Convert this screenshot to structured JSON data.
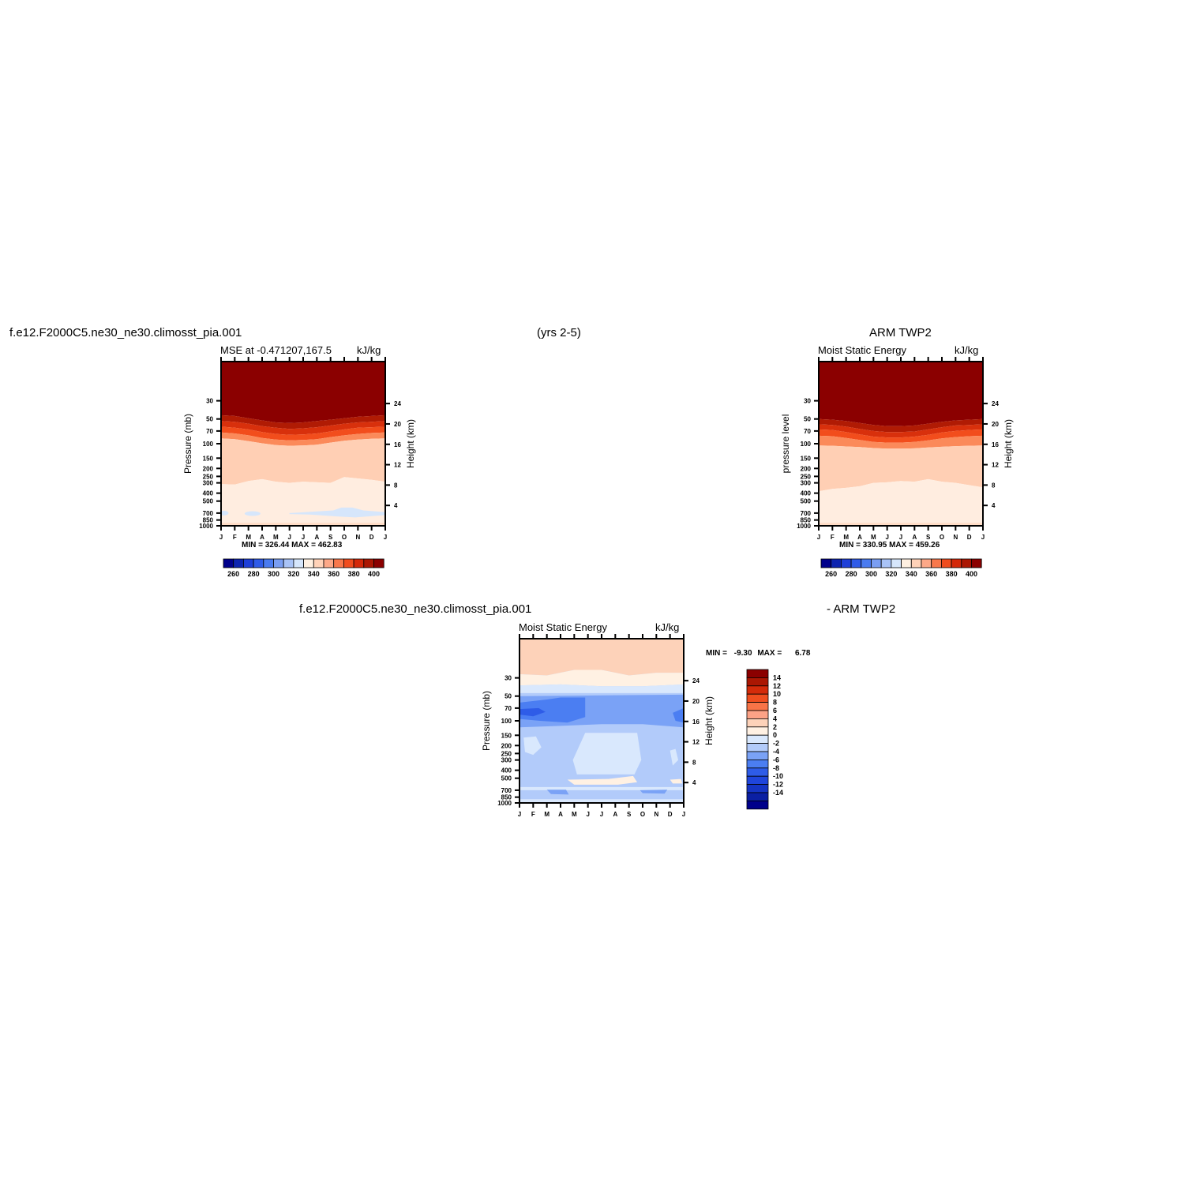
{
  "header": {
    "left_title": "f.e12.F2000C5.ne30_ne30.climosst_pia.001",
    "center_title": "(yrs 2-5)",
    "right_title": "ARM TWP2",
    "diff_title_left": "f.e12.F2000C5.ne30_ne30.climosst_pia.001",
    "diff_title_right": "- ARM TWP2"
  },
  "months": [
    "J",
    "F",
    "M",
    "A",
    "M",
    "J",
    "J",
    "A",
    "S",
    "O",
    "N",
    "D",
    "J"
  ],
  "pressure_ticks": [
    "30",
    "50",
    "70",
    "100",
    "150",
    "200",
    "250",
    "300",
    "400",
    "500",
    "700",
    "850",
    "1000"
  ],
  "height_ticks": [
    "24",
    "20",
    "16",
    "12",
    "8",
    "4"
  ],
  "colors": {
    "mse_scale": [
      "#00008b",
      "#0d24b0",
      "#1e3fd8",
      "#2f5be8",
      "#4a7bf0",
      "#7a9ef2",
      "#a9c3f6",
      "#d6e6fb",
      "#fff0e1",
      "#ffd2b8",
      "#fca888",
      "#f8784c",
      "#f04d1f",
      "#d4290a",
      "#ab1703",
      "#8b0000"
    ],
    "diff_scale": [
      "#00008b",
      "#0b1fa3",
      "#1534c4",
      "#1f45dc",
      "#2e5ce8",
      "#4b7ef2",
      "#7aa2f6",
      "#b2cbfa",
      "#d9e8fd",
      "#fff1e3",
      "#fdd2b9",
      "#fca286",
      "#f87447",
      "#ef4e1f",
      "#d42b0a",
      "#ab1703",
      "#8b0000"
    ]
  },
  "chart_data": [
    {
      "type": "heatmap",
      "id": "model",
      "subtitle_left": "MSE at -0.471207,167.5",
      "units": "kJ/kg",
      "ylabel": "Pressure (mb)",
      "ylabel_right": "Height (km)",
      "min_max": "MIN = 326.44  MAX = 462.83",
      "contour_bands": [
        {
          "range": ">400",
          "top_p": 10,
          "bottom_p": [
            45,
            46,
            49,
            52,
            55,
            56,
            55,
            53,
            51,
            49,
            47,
            46,
            45
          ]
        },
        {
          "range": "390-400",
          "bottom_p": [
            53,
            54,
            57,
            61,
            64,
            66,
            65,
            63,
            60,
            57,
            55,
            54,
            53
          ]
        },
        {
          "range": "380-390",
          "bottom_p": [
            62,
            64,
            67,
            72,
            76,
            78,
            77,
            75,
            71,
            67,
            64,
            63,
            62
          ]
        },
        {
          "range": "370-380",
          "bottom_p": [
            73,
            75,
            79,
            85,
            89,
            91,
            90,
            88,
            83,
            79,
            76,
            74,
            73
          ]
        },
        {
          "range": "360-370",
          "bottom_p": [
            86,
            88,
            93,
            99,
            104,
            106,
            105,
            103,
            97,
            92,
            89,
            87,
            86
          ]
        },
        {
          "range": "340-360",
          "bottom_p": [
            310,
            315,
            285,
            270,
            290,
            300,
            290,
            295,
            300,
            255,
            265,
            275,
            290
          ]
        },
        {
          "range": "320-340",
          "bottom_p": [
            1000,
            1000,
            1000,
            1000,
            1000,
            1000,
            1000,
            1000,
            1000,
            1000,
            1000,
            1000,
            1000
          ]
        }
      ],
      "colorbar": {
        "labels": [
          "260",
          "280",
          "300",
          "320",
          "340",
          "360",
          "380",
          "400"
        ]
      }
    },
    {
      "type": "heatmap",
      "id": "obs",
      "subtitle_left": "Moist Static Energy",
      "units": "kJ/kg",
      "ylabel": "pressure level",
      "ylabel_right": "Height (km)",
      "min_max": "MIN = 330.95  MAX = 459.26",
      "contour_bands": [
        {
          "range": ">400",
          "top_p": 10,
          "bottom_p": [
            50,
            51,
            53,
            56,
            59,
            61,
            61,
            60,
            57,
            54,
            52,
            51,
            50
          ]
        },
        {
          "range": "390-400",
          "bottom_p": [
            58,
            59,
            62,
            66,
            70,
            72,
            72,
            71,
            67,
            63,
            60,
            59,
            58
          ]
        },
        {
          "range": "380-390",
          "bottom_p": [
            67,
            68,
            72,
            77,
            82,
            84,
            84,
            82,
            78,
            73,
            70,
            68,
            67
          ]
        },
        {
          "range": "370-380",
          "bottom_p": [
            80,
            81,
            85,
            90,
            95,
            97,
            97,
            95,
            91,
            86,
            83,
            81,
            80
          ]
        },
        {
          "range": "360-370",
          "bottom_p": [
            105,
            106,
            108,
            110,
            113,
            115,
            115,
            114,
            111,
            109,
            107,
            106,
            105
          ]
        },
        {
          "range": "340-360",
          "bottom_p": [
            380,
            355,
            345,
            330,
            300,
            295,
            285,
            290,
            270,
            290,
            300,
            320,
            340
          ]
        },
        {
          "range": "320-340",
          "bottom_p": [
            1000,
            1000,
            1000,
            1000,
            1000,
            1000,
            1000,
            1000,
            1000,
            1000,
            1000,
            1000,
            1000
          ]
        }
      ],
      "colorbar": {
        "labels": [
          "260",
          "280",
          "300",
          "320",
          "340",
          "360",
          "380",
          "400"
        ]
      }
    },
    {
      "type": "heatmap",
      "id": "diff",
      "subtitle_left": "Moist Static Energy",
      "units": "kJ/kg",
      "ylabel": "Pressure (mb)",
      "ylabel_right": "Height (km)",
      "min_max_label": "MIN =",
      "min_value": "-9.30",
      "max_label": "MAX =",
      "max_value": "6.78",
      "colorbar": {
        "labels": [
          "14",
          "12",
          "10",
          "8",
          "6",
          "4",
          "2",
          "0",
          "-2",
          "-4",
          "-6",
          "-8",
          "-10",
          "-12",
          "-14"
        ]
      }
    }
  ]
}
